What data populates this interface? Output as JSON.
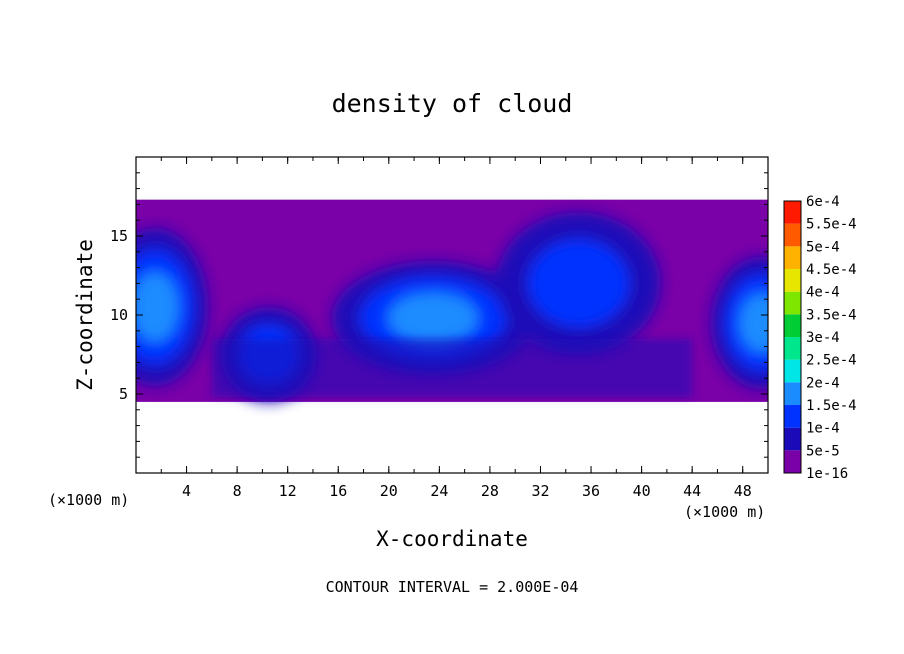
{
  "chart_data": {
    "type": "heatmap",
    "title": "density of cloud",
    "xlabel": "X-coordinate",
    "ylabel": "Z-coordinate",
    "x_unit": "(×1000 m)",
    "x_unit_right": "(×1000 m)",
    "xlim": [
      0,
      50
    ],
    "ylim": [
      0,
      20
    ],
    "x_ticks": [
      "4",
      "8",
      "12",
      "16",
      "20",
      "24",
      "28",
      "32",
      "36",
      "40",
      "44",
      "48"
    ],
    "y_ticks": [
      "5",
      "10",
      "15"
    ],
    "colorbar": {
      "labels": [
        "1e-16",
        "5e-5",
        "1e-4",
        "1.5e-4",
        "2e-4",
        "2.5e-4",
        "3e-4",
        "3.5e-4",
        "4e-4",
        "4.5e-4",
        "5e-4",
        "5.5e-4",
        "6e-4"
      ],
      "colors": [
        "#7a00a8",
        "#1b0ab8",
        "#0033ff",
        "#1a8cff",
        "#00e5e5",
        "#00e68c",
        "#00cc33",
        "#7fe600",
        "#e6e600",
        "#ffb300",
        "#ff5a00",
        "#ff1a00",
        "#ff8080"
      ]
    },
    "field": {
      "cloud_base_km": 4.5,
      "cloud_top_km": 17.3,
      "regions": [
        {
          "x": 1.5,
          "z": 10.5,
          "value": 0.00019
        },
        {
          "x": 10.5,
          "z": 7.5,
          "value": 0.00012
        },
        {
          "x": 23.5,
          "z": 9.8,
          "value": 0.000185
        },
        {
          "x": 35.0,
          "z": 12.0,
          "value": 0.00011
        },
        {
          "x": 49.5,
          "z": 9.5,
          "value": 0.00018
        }
      ]
    },
    "footnote": "CONTOUR INTERVAL = 2.000E-04"
  }
}
